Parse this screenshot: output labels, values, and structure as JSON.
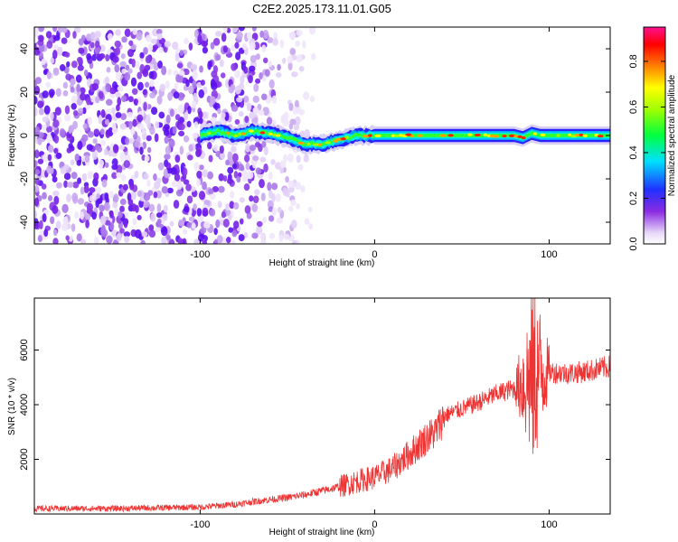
{
  "figure_title": "C2E2.2025.173.11.01.G05",
  "chart_data": [
    {
      "type": "heatmap",
      "xlabel": "Height of straight line (km)",
      "ylabel": "Frequency (Hz)",
      "xlim": [
        -195,
        135
      ],
      "ylim": [
        -50,
        50
      ],
      "xticks": [
        -100,
        0,
        100
      ],
      "xtick_labels": [
        "-100",
        "0",
        "100"
      ],
      "yticks": [
        -40,
        -20,
        0,
        20,
        40
      ],
      "ytick_labels": [
        "-40",
        "-20",
        "0",
        "20",
        "40"
      ],
      "colorbar": {
        "label": "Normalized spectral amplitude",
        "range": [
          0,
          0.95
        ],
        "ticks": [
          0.0,
          0.2,
          0.4,
          0.6,
          0.8
        ],
        "tick_labels": [
          "0.0",
          "0.2",
          "0.4",
          "0.6",
          "0.8"
        ],
        "colormap": "rainbow (white-lavender-violet-blue-cyan-green-yellow-orange-red-magenta)"
      },
      "features": {
        "noise_region_x": [
          -195,
          -35
        ],
        "signal_band_x": [
          -100,
          135
        ],
        "signal_band_center_freq": [
          [
            -100,
            0
          ],
          [
            -90,
            2
          ],
          [
            -80,
            0
          ],
          [
            -70,
            2
          ],
          [
            -60,
            1
          ],
          [
            -50,
            -1
          ],
          [
            -40,
            -4
          ],
          [
            -30,
            -4
          ],
          [
            -20,
            -2
          ],
          [
            -10,
            0
          ],
          [
            0,
            0
          ],
          [
            10,
            0
          ],
          [
            50,
            0
          ],
          [
            80,
            0
          ],
          [
            85,
            -1
          ],
          [
            90,
            1
          ],
          [
            95,
            0
          ],
          [
            135,
            0
          ]
        ]
      },
      "grid": false
    },
    {
      "type": "line",
      "xlabel": "Height of straight line (km)",
      "ylabel": "SNR (10 * v/v)",
      "xlim": [
        -195,
        135
      ],
      "ylim": [
        0,
        7900
      ],
      "xticks": [
        -100,
        0,
        100
      ],
      "xtick_labels": [
        "-100",
        "0",
        "100"
      ],
      "yticks": [
        2000,
        4000,
        6000
      ],
      "ytick_labels": [
        "2000",
        "4000",
        "6000"
      ],
      "series": [
        {
          "color": "#ee3333",
          "x": [
            -195,
            -150,
            -100,
            -80,
            -70,
            -50,
            -40,
            -20,
            -10,
            0,
            10,
            20,
            30,
            35,
            40,
            60,
            70,
            80,
            85,
            90,
            95,
            100,
            110,
            120,
            135
          ],
          "y": [
            200,
            200,
            250,
            350,
            450,
            600,
            700,
            1000,
            1200,
            1350,
            1650,
            2200,
            2800,
            3000,
            3600,
            4100,
            4400,
            4600,
            4800,
            5000,
            5200,
            5200,
            5150,
            5200,
            5400
          ]
        }
      ],
      "grid": false
    }
  ]
}
